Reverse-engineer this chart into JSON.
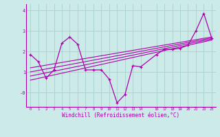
{
  "xlabel": "Windchill (Refroidissement éolien,°C)",
  "ylim": [
    -0.7,
    4.3
  ],
  "xlim": [
    -0.5,
    23.5
  ],
  "yticks": [
    0,
    1,
    2,
    3,
    4
  ],
  "ytick_labels": [
    "-0",
    "1",
    "2",
    "3",
    "4"
  ],
  "bg_color": "#cceae8",
  "grid_color": "#aad4d2",
  "line_color": "#aa00aa",
  "series1_x": [
    0,
    1,
    2,
    3,
    4,
    5,
    6,
    7,
    8,
    9,
    10,
    11,
    12,
    13,
    14,
    16,
    17,
    18,
    19,
    20,
    21,
    22,
    23
  ],
  "series1_y": [
    1.85,
    1.5,
    0.7,
    1.1,
    2.4,
    2.7,
    2.35,
    1.1,
    1.1,
    1.1,
    0.65,
    -0.5,
    -0.1,
    1.3,
    1.25,
    1.85,
    2.1,
    2.1,
    2.15,
    2.3,
    3.0,
    3.85,
    2.65
  ],
  "trend_lines": [
    {
      "x": [
        0,
        23
      ],
      "y": [
        0.6,
        2.55
      ]
    },
    {
      "x": [
        0,
        23
      ],
      "y": [
        0.8,
        2.6
      ]
    },
    {
      "x": [
        0,
        23
      ],
      "y": [
        1.0,
        2.65
      ]
    },
    {
      "x": [
        0,
        23
      ],
      "y": [
        1.2,
        2.7
      ]
    }
  ],
  "xtick_positions": [
    0,
    1,
    2,
    3,
    4,
    5,
    6,
    7,
    8,
    9,
    10,
    11,
    12,
    13,
    14,
    16,
    17,
    18,
    19,
    20,
    21,
    22,
    23
  ],
  "xtick_labels": [
    "0",
    "1",
    "2",
    "3",
    "4",
    "5",
    "6",
    "7",
    "8",
    "9",
    "10",
    "11",
    "12",
    "13",
    "14",
    "16",
    "17",
    "18",
    "19",
    "20",
    "21",
    "22",
    "23"
  ]
}
